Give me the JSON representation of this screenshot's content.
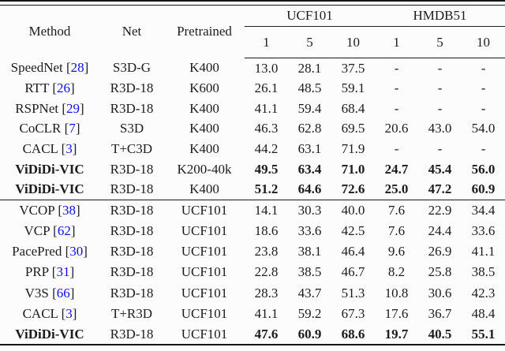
{
  "table": {
    "header": {
      "method": "Method",
      "net": "Net",
      "pretrained": "Pretrained",
      "groups": [
        {
          "label": "UCF101",
          "subcols": [
            "1",
            "5",
            "10"
          ]
        },
        {
          "label": "HMDB51",
          "subcols": [
            "1",
            "5",
            "10"
          ]
        }
      ]
    },
    "blocks": [
      {
        "rows": [
          {
            "method": "SpeedNet",
            "cite": "28",
            "net": "S3D-G",
            "pretrained": "K400",
            "values": [
              "13.0",
              "28.1",
              "37.5",
              "-",
              "-",
              "-"
            ],
            "bold": false
          },
          {
            "method": "RTT",
            "cite": "26",
            "net": "R3D-18",
            "pretrained": "K600",
            "values": [
              "26.1",
              "48.5",
              "59.1",
              "-",
              "-",
              "-"
            ],
            "bold": false
          },
          {
            "method": "RSPNet",
            "cite": "29",
            "net": "R3D-18",
            "pretrained": "K400",
            "values": [
              "41.1",
              "59.4",
              "68.4",
              "-",
              "-",
              "-"
            ],
            "bold": false
          },
          {
            "method": "CoCLR",
            "cite": "7",
            "net": "S3D",
            "pretrained": "K400",
            "values": [
              "46.3",
              "62.8",
              "69.5",
              "20.6",
              "43.0",
              "54.0"
            ],
            "bold": false
          },
          {
            "method": "CACL",
            "cite": "3",
            "net": "T+C3D",
            "pretrained": "K400",
            "values": [
              "44.2",
              "63.1",
              "71.9",
              "-",
              "-",
              "-"
            ],
            "bold": false
          },
          {
            "method": "ViDiDi-VIC",
            "cite": null,
            "net": "R3D-18",
            "pretrained": "K200-40k",
            "values": [
              "49.5",
              "63.4",
              "71.0",
              "24.7",
              "45.4",
              "56.0"
            ],
            "bold": true
          },
          {
            "method": "ViDiDi-VIC",
            "cite": null,
            "net": "R3D-18",
            "pretrained": "K400",
            "values": [
              "51.2",
              "64.6",
              "72.6",
              "25.0",
              "47.2",
              "60.9"
            ],
            "bold": true
          }
        ]
      },
      {
        "rows": [
          {
            "method": "VCOP",
            "cite": "38",
            "net": "R3D-18",
            "pretrained": "UCF101",
            "values": [
              "14.1",
              "30.3",
              "40.0",
              "7.6",
              "22.9",
              "34.4"
            ],
            "bold": false
          },
          {
            "method": "VCP",
            "cite": "62",
            "net": "R3D-18",
            "pretrained": "UCF101",
            "values": [
              "18.6",
              "33.6",
              "42.5",
              "7.6",
              "24.4",
              "33.6"
            ],
            "bold": false
          },
          {
            "method": "PacePred",
            "cite": "30",
            "net": "R3D-18",
            "pretrained": "UCF101",
            "values": [
              "23.8",
              "38.1",
              "46.4",
              "9.6",
              "26.9",
              "41.1"
            ],
            "bold": false
          },
          {
            "method": "PRP",
            "cite": "31",
            "net": "R3D-18",
            "pretrained": "UCF101",
            "values": [
              "22.8",
              "38.5",
              "46.7",
              "8.2",
              "25.8",
              "38.5"
            ],
            "bold": false
          },
          {
            "method": "V3S",
            "cite": "66",
            "net": "R3D-18",
            "pretrained": "UCF101",
            "values": [
              "28.3",
              "43.7",
              "51.3",
              "10.8",
              "30.6",
              "42.3"
            ],
            "bold": false
          },
          {
            "method": "CACL",
            "cite": "3",
            "net": "T+R3D",
            "pretrained": "UCF101",
            "values": [
              "41.1",
              "59.2",
              "67.3",
              "17.6",
              "36.7",
              "48.4"
            ],
            "bold": false
          },
          {
            "method": "ViDiDi-VIC",
            "cite": null,
            "net": "R3D-18",
            "pretrained": "UCF101",
            "values": [
              "47.6",
              "60.9",
              "68.6",
              "19.7",
              "40.5",
              "55.1"
            ],
            "bold": true
          }
        ]
      }
    ]
  },
  "colors": {
    "citation": "#0F0FE8",
    "text": "#1c1c1c",
    "rule": "#151515"
  }
}
